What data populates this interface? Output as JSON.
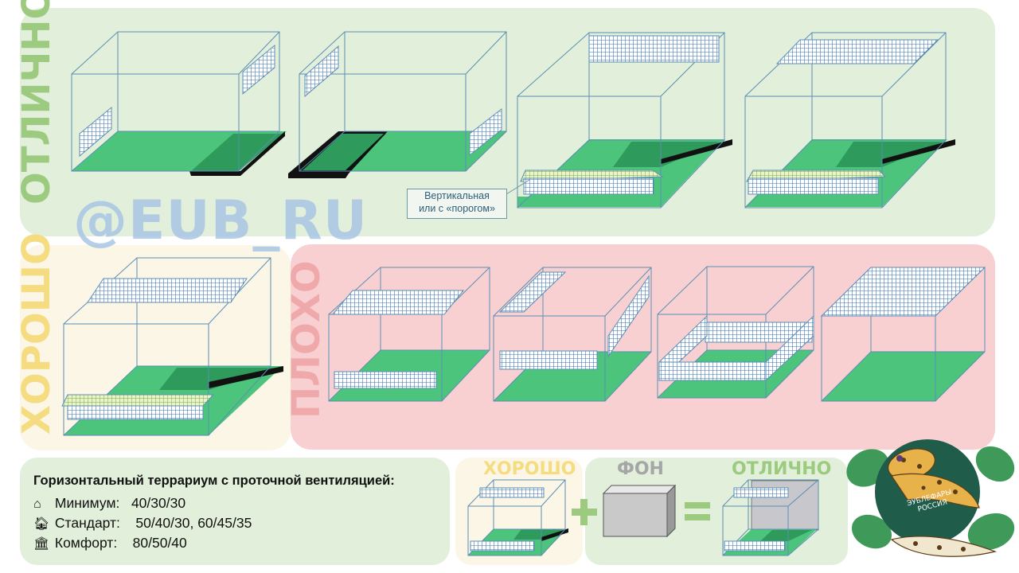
{
  "ratings": {
    "excellent": "ОТЛИЧНО",
    "good": "ХОРОШО",
    "bad": "ПЛОХО"
  },
  "watermark": "@EUB_RU",
  "note_lines": [
    "Вертикальная",
    "или с «порогом»"
  ],
  "info": {
    "title": "Горизонтальный  террариум  с  проточной  вентиляцией:",
    "rows": [
      {
        "icon": "home-outline-icon",
        "label": "Минимум:",
        "value": "40/30/30"
      },
      {
        "icon": "home-star-icon",
        "label": "Стандарт:",
        "value": "50/40/30, 60/45/35"
      },
      {
        "icon": "palace-icon",
        "label": "Комфорт:",
        "value": "80/50/40"
      }
    ]
  },
  "equation": {
    "left": "ХОРОШО",
    "middle": "ФОН",
    "right": "ОТЛИЧНО",
    "plus": "+",
    "equals": "="
  },
  "logo": {
    "text_line1": "ЭУБЛЕФАРЫ",
    "text_line2": "РОССИЯ"
  },
  "colors": {
    "excellent_bg": "#e2efdb",
    "good_bg": "#fbf6e6",
    "bad_bg": "#f8d0d1",
    "excellent_text": "#9ccb80",
    "good_text": "#f6dc80",
    "bad_text": "#f0a9ab",
    "floor": "#4dc47c",
    "frame": "#5a8fb5"
  }
}
